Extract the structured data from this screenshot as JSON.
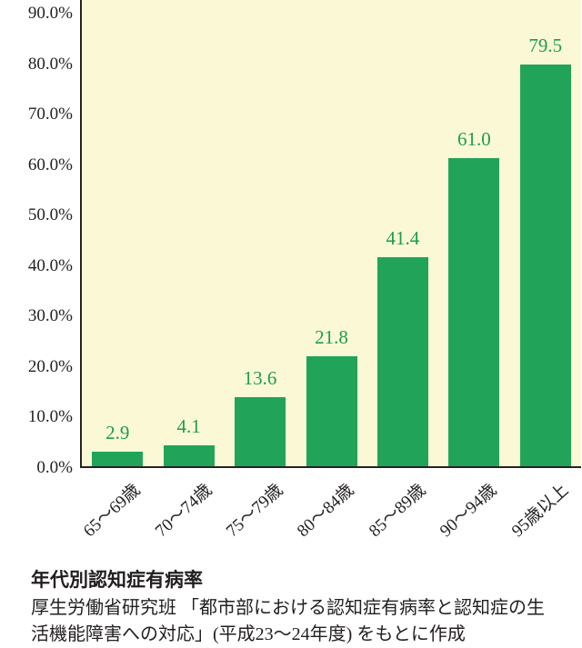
{
  "chart_data": {
    "type": "bar",
    "title": "年代別認知症有病率",
    "xlabel": "",
    "ylabel": "",
    "categories": [
      "65〜69歳",
      "70〜74歳",
      "75〜79歳",
      "80〜84歳",
      "85〜89歳",
      "90〜94歳",
      "95歳以上"
    ],
    "values": [
      2.9,
      4.1,
      13.6,
      21.8,
      41.4,
      61.0,
      79.5
    ],
    "value_labels": [
      "2.9",
      "4.1",
      "13.6",
      "21.8",
      "41.4",
      "61.0",
      "79.5"
    ],
    "ylim": [
      0,
      90
    ],
    "y_ticks": [
      {
        "value": 0,
        "label": "0.0%"
      },
      {
        "value": 10,
        "label": "10.0%"
      },
      {
        "value": 20,
        "label": "20.0%"
      },
      {
        "value": 30,
        "label": "30.0%"
      },
      {
        "value": 40,
        "label": "40.0%"
      },
      {
        "value": 50,
        "label": "50.0%"
      },
      {
        "value": 60,
        "label": "60.0%"
      },
      {
        "value": 70,
        "label": "70.0%"
      },
      {
        "value": 80,
        "label": "80.0%"
      },
      {
        "value": 90,
        "label": "90.0%"
      }
    ],
    "grid": false,
    "legend": "none",
    "bar_color": "#21a45a",
    "value_label_color": "#1d9c53",
    "plot_bg": "#fbf8d5",
    "axis_color": "#262223"
  },
  "caption": {
    "source": "厚生労働省研究班 「都市部における認知症有病率と認知症の生活機能障害への対応」(平成23〜24年度) をもとに作成"
  }
}
